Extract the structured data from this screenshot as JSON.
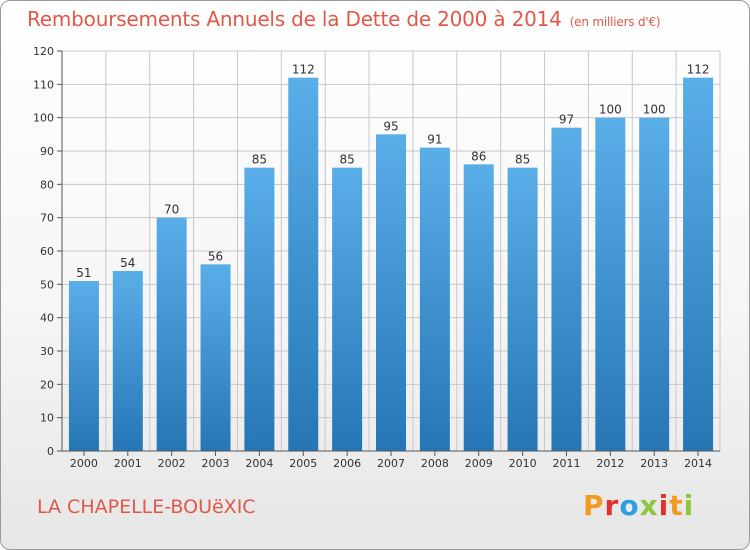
{
  "chart_data": {
    "type": "bar",
    "title": "Remboursements Annuels de la Dette de 2000 à 2014",
    "subtitle": "(en milliers d'€)",
    "categories": [
      "2000",
      "2001",
      "2002",
      "2003",
      "2004",
      "2005",
      "2006",
      "2007",
      "2008",
      "2009",
      "2010",
      "2011",
      "2012",
      "2013",
      "2014"
    ],
    "values": [
      51,
      54,
      70,
      56,
      85,
      112,
      85,
      95,
      91,
      86,
      85,
      97,
      100,
      100,
      112
    ],
    "ylim": [
      0,
      120
    ],
    "yticks": [
      0,
      10,
      20,
      30,
      40,
      50,
      60,
      70,
      80,
      90,
      100,
      110,
      120
    ],
    "xlabel": "",
    "ylabel": "",
    "grid": true
  },
  "footer": {
    "city": "LA CHAPELLE-BOUëXIC",
    "logo_text": "Proxiti"
  },
  "colors": {
    "title": "#e0584a",
    "bar_top": "#5aaee8",
    "bar_bottom": "#2676b6",
    "grid": "#c8c8c8",
    "logo": [
      "#f29a22",
      "#e2312d",
      "#2e9fe0",
      "#8dc63f",
      "#e2312d",
      "#f29a22",
      "#8dc63f"
    ]
  }
}
